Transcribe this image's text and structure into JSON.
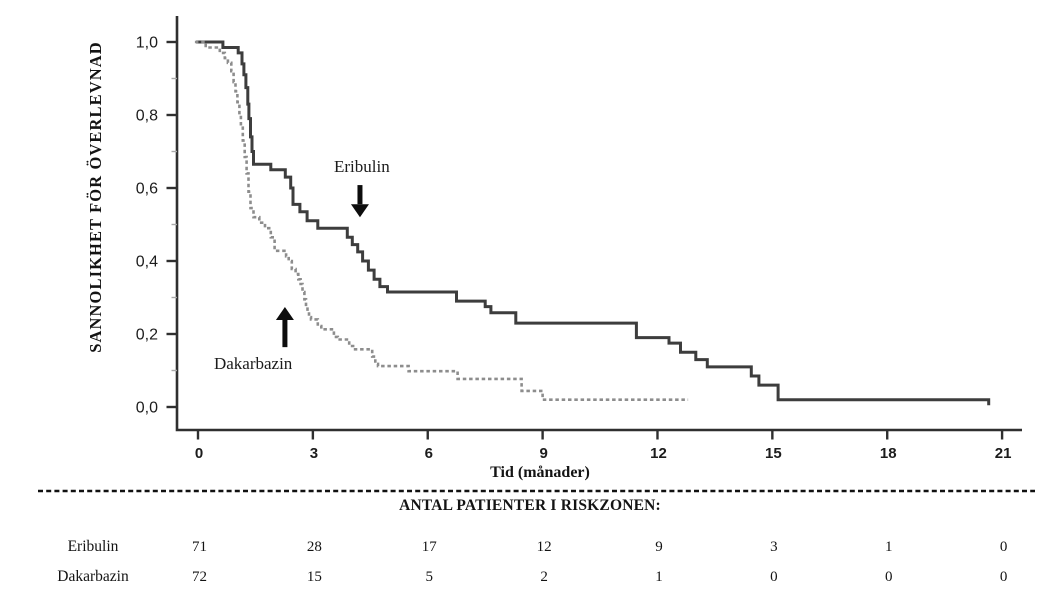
{
  "figure": {
    "background": "#ffffff",
    "text_color": "#141414"
  },
  "chart_data": {
    "type": "line",
    "subtype": "kaplan-meier-step",
    "title": "",
    "xlabel": "Tid (månader)",
    "ylabel": "SANNOLIKHET  FÖR ÖVERLEVNAD",
    "xlim": [
      0,
      21
    ],
    "ylim": [
      0.0,
      1.0
    ],
    "grid": false,
    "legend_position": "inline-annotations",
    "xticks": [
      "0",
      "3",
      "6",
      "9",
      "12",
      "15",
      "18",
      "21"
    ],
    "xtick_values": [
      0,
      3,
      6,
      9,
      12,
      15,
      18,
      21
    ],
    "yticks": [
      "1,0",
      "0,8",
      "0,6",
      "0,4",
      "0,2",
      "0,0"
    ],
    "ytick_values": [
      1.0,
      0.8,
      0.6,
      0.4,
      0.2,
      0.0
    ],
    "series": [
      {
        "name": "Eribulin",
        "style": "solid",
        "color": "#3d3d3d",
        "points": [
          [
            -0.05,
            1.0
          ],
          [
            0.65,
            0.985
          ],
          [
            1.05,
            0.97
          ],
          [
            1.15,
            0.94
          ],
          [
            1.2,
            0.91
          ],
          [
            1.25,
            0.875
          ],
          [
            1.3,
            0.83
          ],
          [
            1.33,
            0.79
          ],
          [
            1.37,
            0.74
          ],
          [
            1.41,
            0.7
          ],
          [
            1.45,
            0.665
          ],
          [
            1.9,
            0.65
          ],
          [
            2.28,
            0.63
          ],
          [
            2.42,
            0.6
          ],
          [
            2.48,
            0.555
          ],
          [
            2.66,
            0.535
          ],
          [
            2.85,
            0.51
          ],
          [
            3.13,
            0.49
          ],
          [
            3.9,
            0.465
          ],
          [
            4.03,
            0.445
          ],
          [
            4.17,
            0.425
          ],
          [
            4.3,
            0.4
          ],
          [
            4.45,
            0.375
          ],
          [
            4.6,
            0.35
          ],
          [
            4.75,
            0.33
          ],
          [
            4.95,
            0.315
          ],
          [
            6.75,
            0.29
          ],
          [
            7.5,
            0.275
          ],
          [
            7.65,
            0.258
          ],
          [
            8.3,
            0.23
          ],
          [
            11.45,
            0.19
          ],
          [
            12.3,
            0.175
          ],
          [
            12.6,
            0.15
          ],
          [
            13.0,
            0.13
          ],
          [
            13.3,
            0.11
          ],
          [
            14.45,
            0.085
          ],
          [
            14.65,
            0.06
          ],
          [
            15.15,
            0.02
          ],
          [
            20.65,
            0.005
          ]
        ]
      },
      {
        "name": "Dakarbazin",
        "style": "dashed",
        "color": "#8d8d8d",
        "points": [
          [
            -0.08,
            1.0
          ],
          [
            0.2,
            0.985
          ],
          [
            0.57,
            0.97
          ],
          [
            0.7,
            0.956
          ],
          [
            0.78,
            0.943
          ],
          [
            0.87,
            0.92
          ],
          [
            0.93,
            0.89
          ],
          [
            0.98,
            0.865
          ],
          [
            1.03,
            0.835
          ],
          [
            1.08,
            0.8
          ],
          [
            1.12,
            0.77
          ],
          [
            1.17,
            0.73
          ],
          [
            1.22,
            0.685
          ],
          [
            1.27,
            0.64
          ],
          [
            1.32,
            0.59
          ],
          [
            1.37,
            0.545
          ],
          [
            1.45,
            0.52
          ],
          [
            1.6,
            0.505
          ],
          [
            1.75,
            0.49
          ],
          [
            1.9,
            0.465
          ],
          [
            2.0,
            0.428
          ],
          [
            2.3,
            0.413
          ],
          [
            2.37,
            0.4
          ],
          [
            2.45,
            0.378
          ],
          [
            2.55,
            0.364
          ],
          [
            2.62,
            0.35
          ],
          [
            2.68,
            0.337
          ],
          [
            2.73,
            0.315
          ],
          [
            2.78,
            0.295
          ],
          [
            2.82,
            0.274
          ],
          [
            2.86,
            0.26
          ],
          [
            2.9,
            0.246
          ],
          [
            2.95,
            0.24
          ],
          [
            3.13,
            0.222
          ],
          [
            3.22,
            0.213
          ],
          [
            3.55,
            0.192
          ],
          [
            3.65,
            0.185
          ],
          [
            3.95,
            0.167
          ],
          [
            4.05,
            0.158
          ],
          [
            4.55,
            0.138
          ],
          [
            4.63,
            0.118
          ],
          [
            4.7,
            0.112
          ],
          [
            5.5,
            0.098
          ],
          [
            6.78,
            0.077
          ],
          [
            8.45,
            0.044
          ],
          [
            9.0,
            0.02
          ],
          [
            12.8,
            0.02
          ]
        ]
      }
    ],
    "annotations": [
      {
        "label": "Eribulin",
        "direction": "down",
        "label_x": 4.28,
        "label_y": 0.644,
        "arrow_x": 4.23,
        "arrow_tail": 0.608,
        "arrow_tip": 0.52
      },
      {
        "label": "Dakarbazin",
        "direction": "up",
        "label_x": 1.44,
        "label_y": 0.104,
        "arrow_x": 2.27,
        "arrow_tail": 0.164,
        "arrow_tip": 0.274
      }
    ]
  },
  "risk_table": {
    "header": "ANTAL PATIENTER I RISKZONEN:",
    "time_points": [
      0,
      3,
      6,
      9,
      12,
      15,
      18,
      21
    ],
    "rows": [
      {
        "label": "Eribulin",
        "values": [
          "71",
          "28",
          "17",
          "12",
          "9",
          "3",
          "1",
          "0"
        ]
      },
      {
        "label": "Dakarbazin",
        "values": [
          "72",
          "15",
          "5",
          "2",
          "1",
          "0",
          "0",
          "0"
        ]
      }
    ]
  }
}
